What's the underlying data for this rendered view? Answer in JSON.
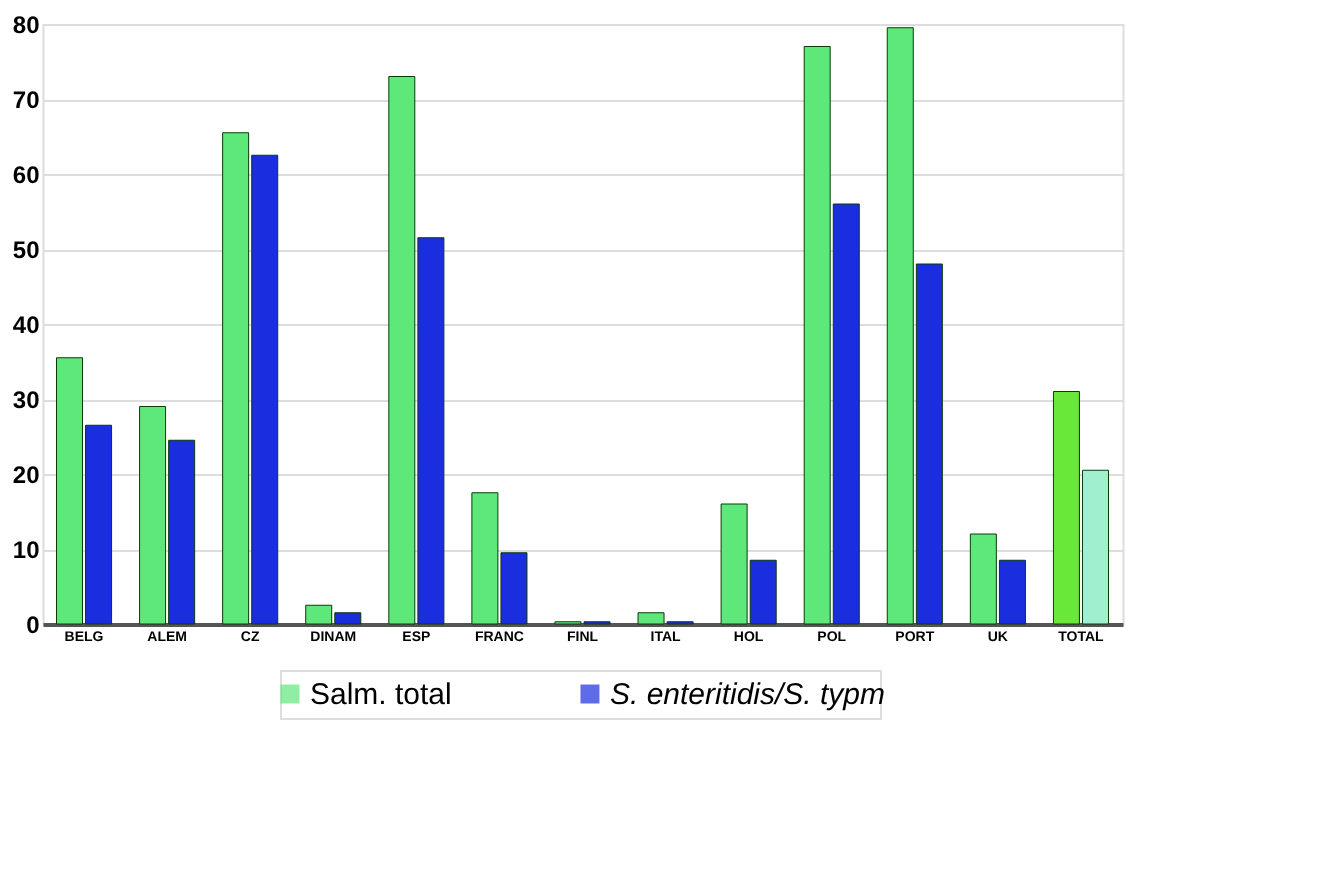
{
  "chart_data": {
    "type": "bar",
    "categories": [
      "BELG",
      "ALEM",
      "CZ",
      "DINAM",
      "ESP",
      "FRANC",
      "FINL",
      "ITAL",
      "HOL",
      "POL",
      "PORT",
      "UK",
      "TOTAL"
    ],
    "series": [
      {
        "name": "Salm. total",
        "color": "#5ee87a",
        "colors": [
          "#5ee87a",
          "#5ee87a",
          "#5ee87a",
          "#5ee87a",
          "#5ee87a",
          "#5ee87a",
          "#5ee87a",
          "#5ee87a",
          "#5ee87a",
          "#5ee87a",
          "#5ee87a",
          "#5ee87a",
          "#6ae83a"
        ],
        "values": [
          35.5,
          29,
          65.5,
          2.5,
          73,
          17.5,
          0.3,
          1.5,
          16,
          77,
          79.5,
          12,
          31
        ]
      },
      {
        "name": "S. enteritidis/S. typm",
        "color": "#1a2ee0",
        "colors": [
          "#1a2ee0",
          "#1a2ee0",
          "#1a2ee0",
          "#1a2ee0",
          "#1a2ee0",
          "#1a2ee0",
          "#1a2ee0",
          "#1a2ee0",
          "#1a2ee0",
          "#1a2ee0",
          "#1a2ee0",
          "#1a2ee0",
          "#a0f0d0"
        ],
        "values": [
          26.5,
          24.5,
          62.5,
          1.5,
          51.5,
          9.5,
          0.3,
          0.3,
          8.5,
          56,
          48,
          8.5,
          20.5
        ]
      }
    ],
    "ylim": [
      0,
      80
    ],
    "yticks": [
      0,
      10,
      20,
      30,
      40,
      50,
      60,
      70,
      80
    ],
    "grid": "y",
    "legend": "bottom"
  }
}
